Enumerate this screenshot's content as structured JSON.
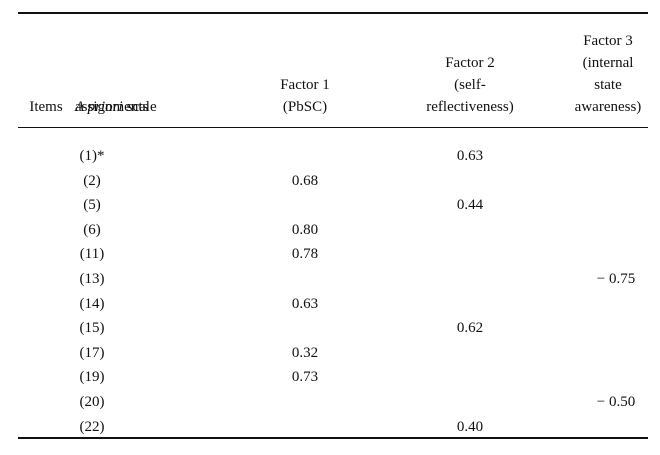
{
  "table": {
    "columns": [
      {
        "lines": [
          "Items"
        ]
      },
      {
        "emphasis": "A priori",
        "lines": [
          "scale",
          "assignments"
        ]
      },
      {
        "lines": [
          "Factor 1",
          "(PbSC)"
        ]
      },
      {
        "lines": [
          "Factor 2",
          "(self-",
          "reflectiveness)"
        ]
      },
      {
        "lines": [
          "Factor 3",
          "(internal",
          "state",
          "awareness)"
        ]
      }
    ],
    "rows": [
      [
        "(1)*",
        "",
        "",
        "0.63",
        ""
      ],
      [
        "(2)",
        "",
        "0.68",
        "",
        ""
      ],
      [
        "(5)",
        "",
        "",
        "0.44",
        ""
      ],
      [
        "(6)",
        "",
        "0.80",
        "",
        ""
      ],
      [
        "(11)",
        "",
        "0.78",
        "",
        ""
      ],
      [
        "(13)",
        "",
        "",
        "",
        "− 0.75"
      ],
      [
        "(14)",
        "",
        "0.63",
        "",
        ""
      ],
      [
        "(15)",
        "",
        "",
        "0.62",
        ""
      ],
      [
        "(17)",
        "",
        "0.32",
        "",
        ""
      ],
      [
        "(19)",
        "",
        "0.73",
        "",
        ""
      ],
      [
        "(20)",
        "",
        "",
        "",
        "− 0.50"
      ],
      [
        "(22)",
        "",
        "",
        "0.40",
        ""
      ]
    ]
  }
}
